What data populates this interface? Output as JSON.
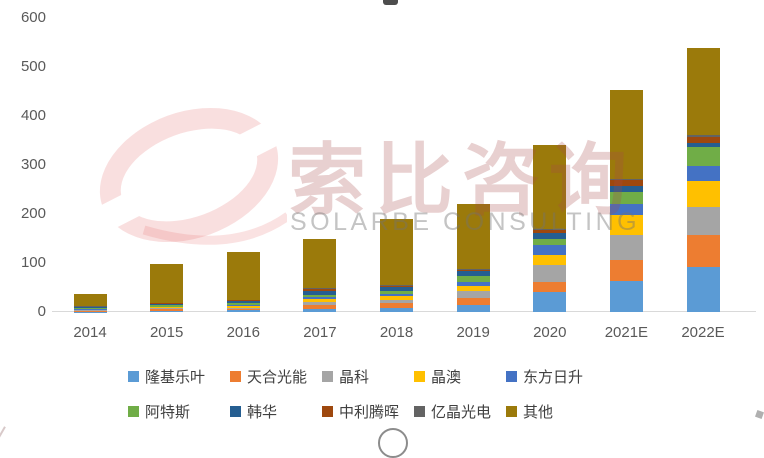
{
  "watermark": {
    "cn_text": "索比咨询",
    "en_text": "SOLARBE CONSULTING",
    "logo_color": "#F3D2D2"
  },
  "axis": {
    "tick_color": "#595959",
    "axis_line_color": "#D9D9D9"
  },
  "chart_data": {
    "type": "bar",
    "stacked": true,
    "title": "",
    "xlabel": "",
    "ylabel": "",
    "ylim": [
      0,
      600
    ],
    "y_ticks": [
      0,
      100,
      200,
      300,
      400,
      500,
      600
    ],
    "grid": false,
    "legend_position": "bottom",
    "categories": [
      "2014",
      "2015",
      "2016",
      "2017",
      "2018",
      "2019",
      "2020",
      "2021E",
      "2022E"
    ],
    "series": [
      {
        "name": "隆基乐叶",
        "color": "#5B9BD5",
        "values": [
          1,
          2,
          4,
          7,
          8,
          15,
          40,
          63,
          92
        ]
      },
      {
        "name": "天合光能",
        "color": "#ED7D31",
        "values": [
          2,
          4,
          3,
          7,
          10,
          13,
          22,
          44,
          65
        ]
      },
      {
        "name": "晶科",
        "color": "#A5A5A5",
        "values": [
          1,
          2,
          2,
          6,
          7,
          15,
          35,
          50,
          58
        ]
      },
      {
        "name": "晶澳",
        "color": "#FFC000",
        "values": [
          1,
          2,
          4,
          6,
          8,
          10,
          20,
          41,
          53
        ]
      },
      {
        "name": "东方日升",
        "color": "#4472C4",
        "values": [
          1,
          1,
          2,
          4,
          3,
          8,
          19,
          22,
          30
        ]
      },
      {
        "name": "阿特斯",
        "color": "#70AD47",
        "values": [
          2,
          3,
          4,
          6,
          7,
          12,
          13,
          24,
          38
        ]
      },
      {
        "name": "韩华",
        "color": "#255E91",
        "values": [
          2,
          3,
          4,
          8,
          8,
          10,
          12,
          13,
          10
        ]
      },
      {
        "name": "中利腾晖",
        "color": "#9E480E",
        "values": [
          1,
          1,
          1,
          3,
          2,
          3,
          7,
          12,
          12
        ]
      },
      {
        "name": "亿晶光电",
        "color": "#636363",
        "values": [
          1,
          1,
          1,
          2,
          2,
          2,
          2,
          3,
          3
        ]
      },
      {
        "name": "其他",
        "color": "#9B7A0B",
        "values": [
          24,
          79,
          97,
          101,
          135,
          132,
          170,
          180,
          177
        ]
      }
    ],
    "totals": [
      36,
      98,
      122,
      150,
      190,
      220,
      340,
      452,
      538
    ]
  }
}
